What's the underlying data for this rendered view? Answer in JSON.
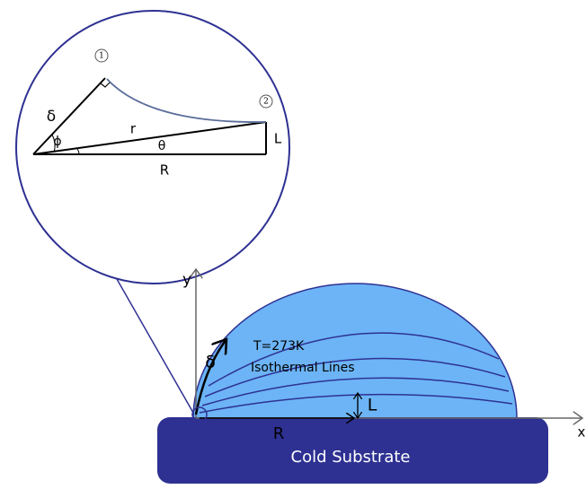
{
  "inset": {
    "point_1": "1",
    "point_2": "2",
    "delta": "δ",
    "phi": "ϕ",
    "r": "r",
    "theta": "θ",
    "R": "R",
    "L": "L"
  },
  "main": {
    "y_axis": "y",
    "x_axis": "x",
    "delta": "δ",
    "temperature": "T=273K",
    "isotherms": "Isothermal Lines",
    "L": "L",
    "R": "R",
    "substrate": "Cold Substrate"
  }
}
